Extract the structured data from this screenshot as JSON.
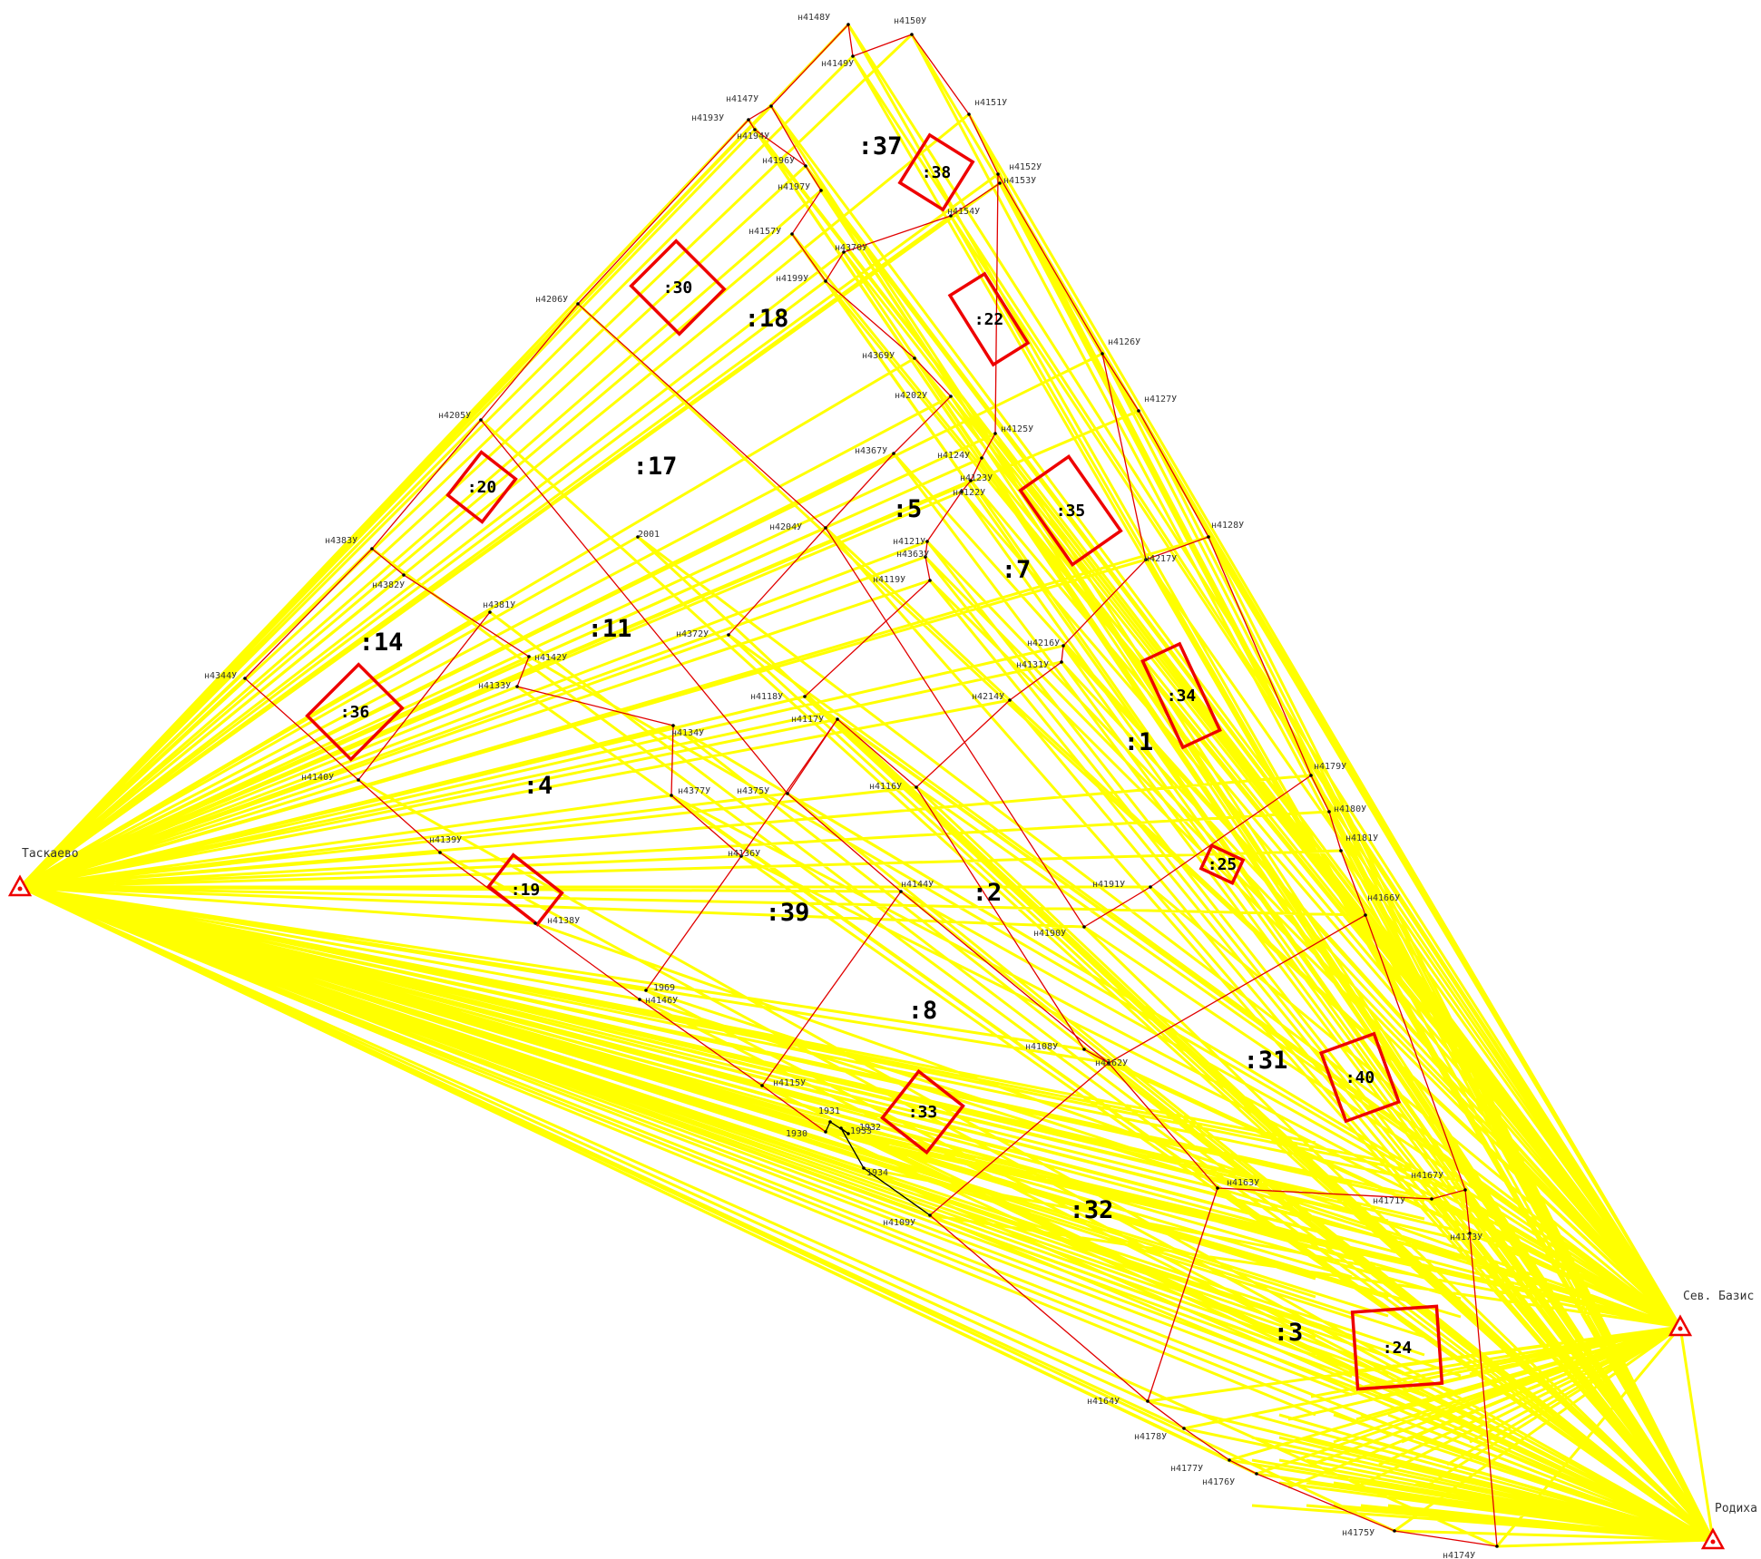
{
  "stations": [
    {
      "id": "taskaevo",
      "label": "Таскаево"
    },
    {
      "id": "sev",
      "label": "Сев. Базис"
    },
    {
      "id": "rodikha",
      "label": "Родиха"
    }
  ],
  "parcels": [
    ":37",
    ":18",
    ":17",
    ":5",
    ":7",
    ":14",
    ":11",
    ":4",
    ":1",
    ":2",
    ":39",
    ":8",
    ":31",
    ":32",
    ":3"
  ],
  "buildings": [
    ":38",
    ":30",
    ":22",
    ":20",
    ":35",
    ":36",
    ":34",
    ":25",
    ":19",
    ":40",
    ":33",
    ":24"
  ],
  "points": [
    "н4148У",
    "н4150У",
    "н4149У",
    "н4151У",
    "н4147У",
    "н4193У",
    "н4194У",
    "н4196У",
    "н4197У",
    "н4152У",
    "н4153У",
    "н4154У",
    "н4157У",
    "н4370У",
    "н4199У",
    "н4206У",
    "н4126У",
    "н4127У",
    "н4369У",
    "н4202У",
    "н4205У",
    "н4125У",
    "н4367У",
    "н4124У",
    "н4123У",
    "н4122У",
    "н4128У",
    "н4121У",
    "н4363У",
    "н4204У",
    "н4383У",
    "н4217У",
    "н4119У",
    "н4382У",
    "н4381У",
    "н4216У",
    "н4131У",
    "н4142У",
    "н4372У",
    "н4344У",
    "н4133У",
    "н4214У",
    "н4118У",
    "н4117У",
    "н4134У",
    "н4179У",
    "н4180У",
    "н4116У",
    "н4377У",
    "н4375У",
    "н4140У",
    "н4181У",
    "н4139У",
    "н4136У",
    "н4144У",
    "н4191У",
    "н4166У",
    "н4138У",
    "н4190У",
    "н4146У",
    "н4108У",
    "н4162У",
    "н4115У",
    "н4163У",
    "н4167У",
    "н4171У",
    "н4109У",
    "н4173У",
    "н4164У",
    "н4178У",
    "н4177У",
    "н4176У",
    "н4175У",
    "н4174У",
    "2001",
    "1969",
    "1931",
    "1932",
    "1933",
    "1930",
    "1934"
  ]
}
